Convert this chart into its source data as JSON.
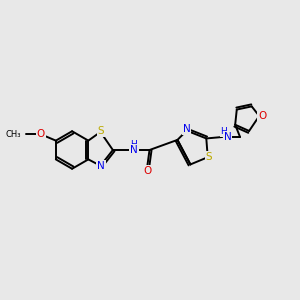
{
  "bg_color": "#e8e8e8",
  "atom_colors": {
    "C": "#000000",
    "N": "#0000ee",
    "O": "#dd0000",
    "S": "#bbaa00",
    "H": "#777777"
  },
  "bond_color": "#000000",
  "bond_width": 1.4,
  "font_size_atoms": 7.5,
  "font_size_small": 6.5
}
